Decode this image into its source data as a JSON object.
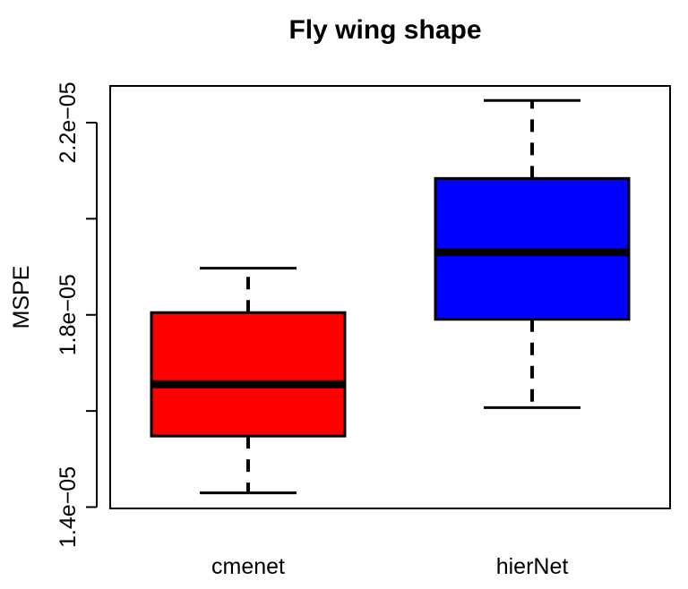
{
  "chart_data": {
    "type": "box",
    "title": "Fly wing shape",
    "xlabel": "",
    "ylabel": "MSPE",
    "ylim": [
      1.39e-05,
      2.26e-05
    ],
    "y_ticks": [
      1.4e-05,
      1.6e-05,
      1.8e-05,
      2e-05,
      2.2e-05
    ],
    "y_tick_labels": [
      "1.4e−05",
      "",
      "1.8e−05",
      "",
      "2.2e−05"
    ],
    "categories": [
      "cmenet",
      "hierNet"
    ],
    "boxes": [
      {
        "name": "cmenet",
        "whisker_low": 1.4295e-05,
        "q1": 1.5478e-05,
        "median": 1.6557e-05,
        "q3": 1.8047e-05,
        "whisker_high": 1.8971e-05,
        "fill": "#ff0000"
      },
      {
        "name": "hierNet",
        "whisker_low": 1.6069e-05,
        "q1": 1.7907e-05,
        "median": 1.9306e-05,
        "q3": 2.0839e-05,
        "whisker_high": 2.246e-05,
        "fill": "#0000ff"
      }
    ],
    "grid": false,
    "legend": "none"
  }
}
